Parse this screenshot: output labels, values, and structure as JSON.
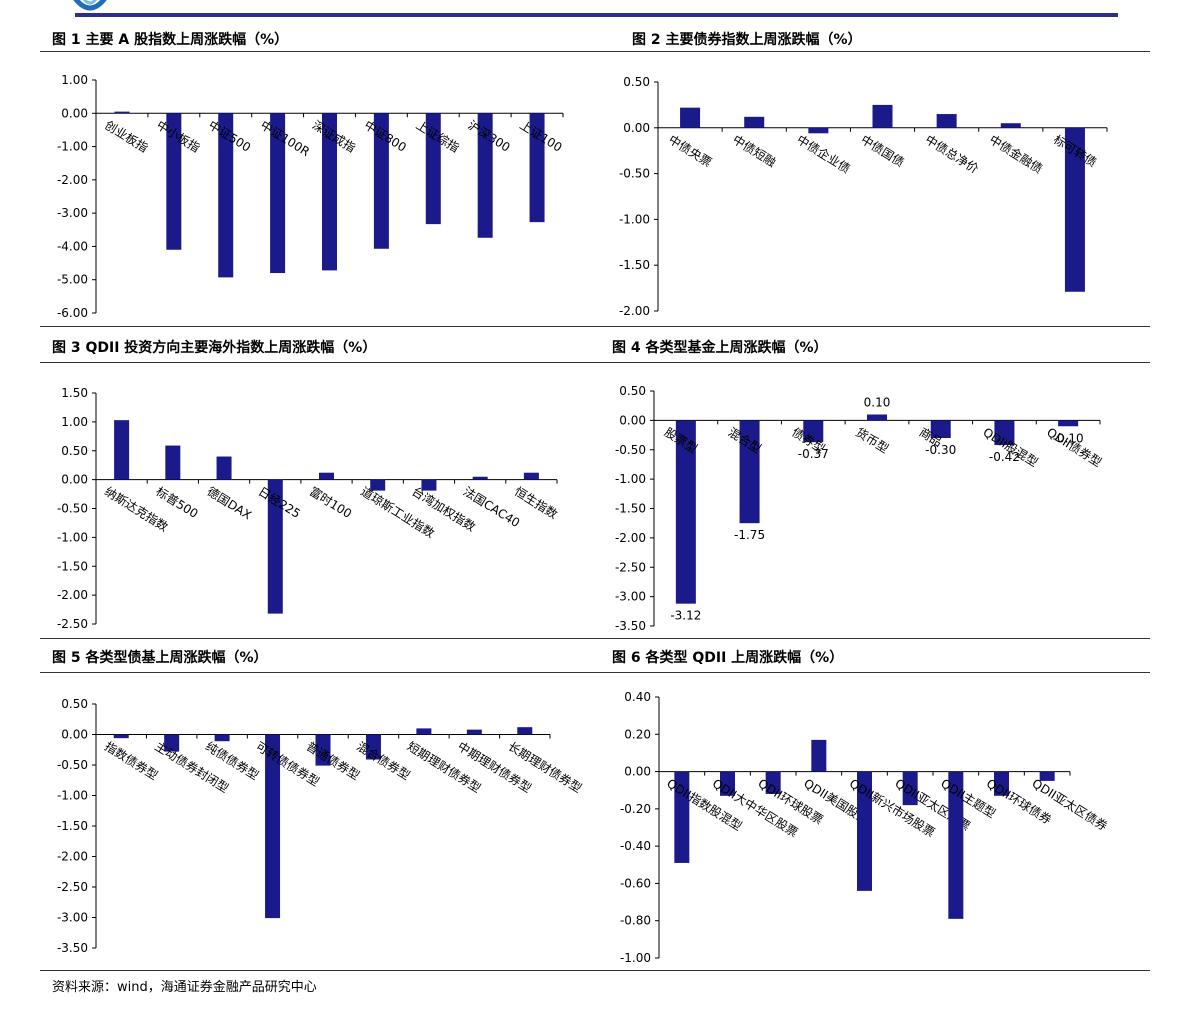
{
  "source_note": "资料来源：wind，海通证券金融产品研究中心",
  "colors": {
    "bar": "#1a1a8a",
    "header_line": "#2b2f8f"
  },
  "chart_data": [
    {
      "type": "bar",
      "title": "图 1   主要 A 股指数上周涨跌幅（%）",
      "categories": [
        "创业板指",
        "中小板指",
        "中证500",
        "中证100R",
        "深证成指",
        "中证800",
        "上证综指",
        "沪深300",
        "上证100"
      ],
      "values": [
        0.05,
        -4.1,
        -4.93,
        -4.8,
        -4.72,
        -4.07,
        -3.33,
        -3.74,
        -3.27
      ],
      "ylim": [
        -6,
        1
      ],
      "yticks": [
        1,
        0,
        -1,
        -2,
        -3,
        -4,
        -5,
        -6
      ],
      "decimals": 2,
      "show_values": false
    },
    {
      "type": "bar",
      "title": "图 2   主要债券指数上周涨跌幅（%）",
      "categories": [
        "中债央票",
        "中债短融",
        "中债企业债",
        "中债国债",
        "中债总净价",
        "中债金融债",
        "标可转债"
      ],
      "values": [
        0.22,
        0.12,
        -0.06,
        0.25,
        0.15,
        0.05,
        -1.79
      ],
      "ylim": [
        -2,
        0.5
      ],
      "yticks": [
        0.5,
        0,
        -0.5,
        -1,
        -1.5,
        -2
      ],
      "decimals": 2,
      "show_values": false
    },
    {
      "type": "bar",
      "title": "图 3 QDII 投资方向主要海外指数上周涨跌幅（%）",
      "categories": [
        "纳斯达克指数",
        "标普500",
        "德国DAX",
        "日经225",
        "富时100",
        "道琼斯工业指数",
        "台湾加权指数",
        "法国CAC40",
        "恒生指数"
      ],
      "values": [
        1.03,
        0.59,
        0.4,
        -2.32,
        0.12,
        -0.19,
        -0.19,
        0.05,
        0.12
      ],
      "ylim": [
        -2.5,
        1.5
      ],
      "yticks": [
        1.5,
        1,
        0.5,
        0,
        -0.5,
        -1,
        -1.5,
        -2,
        -2.5
      ],
      "decimals": 2,
      "show_values": false
    },
    {
      "type": "bar",
      "title": "图 4   各类型基金上周涨跌幅（%）",
      "categories": [
        "股票型",
        "混合型",
        "债券型",
        "货币型",
        "商品",
        "QDII股混型",
        "QDII债券型"
      ],
      "values": [
        -3.12,
        -1.75,
        -0.37,
        0.1,
        -0.3,
        -0.42,
        -0.1
      ],
      "value_labels": [
        "-3.12",
        "-1.75",
        "-0.37",
        "0.10",
        "-0.30",
        "-0.42",
        "-0.10"
      ],
      "ylim": [
        -3.5,
        0.5
      ],
      "yticks": [
        0.5,
        0,
        -0.5,
        -1,
        -1.5,
        -2,
        -2.5,
        -3,
        -3.5
      ],
      "decimals": 2,
      "show_values": true
    },
    {
      "type": "bar",
      "title": "图 5   各类型债基上周涨跌幅（%）",
      "categories": [
        "指数债券型",
        "主动债券封闭型",
        "纯债债券型",
        "可转债债券型",
        "普通债券型",
        "混合债券型",
        "短期理财债券型",
        "中期理财债券型",
        "长期理财债券型"
      ],
      "values": [
        -0.06,
        -0.28,
        -0.11,
        -3.01,
        -0.51,
        -0.41,
        0.1,
        0.08,
        0.12
      ],
      "ylim": [
        -3.5,
        0.5
      ],
      "yticks": [
        0.5,
        0,
        -0.5,
        -1,
        -1.5,
        -2,
        -2.5,
        -3,
        -3.5
      ],
      "decimals": 2,
      "show_values": false
    },
    {
      "type": "bar",
      "title": "图 6   各类型 QDII 上周涨跌幅（%）",
      "categories": [
        "QDII指数股混型",
        "QDII大中华区股票",
        "QDII环球股票",
        "QDII美国股票",
        "QDII新兴市场股票",
        "QDII亚太区股票",
        "QDII主题型",
        "QDII环球债券",
        "QDII亚太区债券"
      ],
      "values": [
        -0.49,
        -0.13,
        -0.12,
        0.17,
        -0.64,
        -0.18,
        -0.79,
        -0.13,
        -0.05
      ],
      "ylim": [
        -1,
        0.4
      ],
      "yticks": [
        0.4,
        0.2,
        0,
        -0.2,
        -0.4,
        -0.6,
        -0.8,
        -1
      ],
      "decimals": 2,
      "show_values": false
    }
  ]
}
